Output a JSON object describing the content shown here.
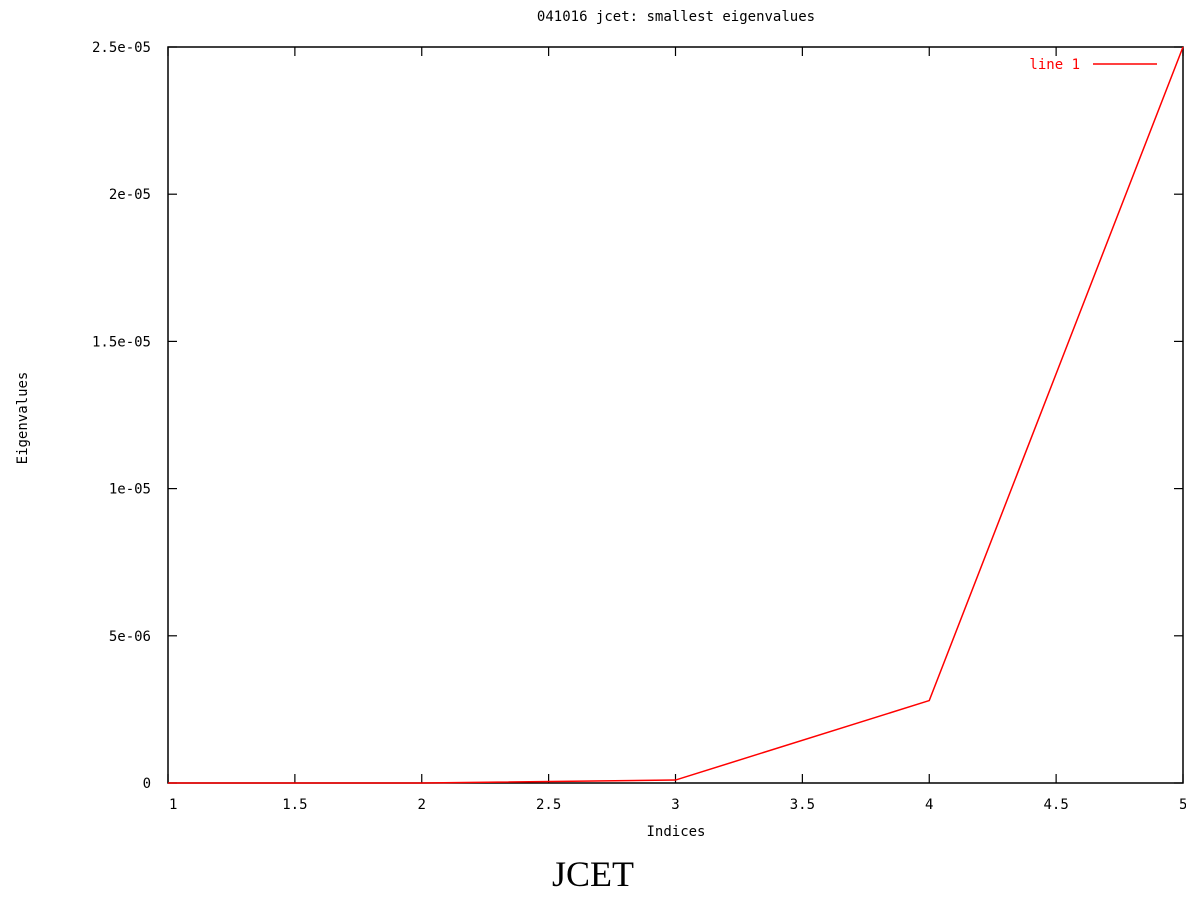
{
  "chart_data": {
    "type": "line",
    "title": "041016 jcet: smallest eigenvalues",
    "xlabel": "Indices",
    "ylabel": "Eigenvalues",
    "xlim": [
      1,
      5
    ],
    "ylim": [
      0,
      2.5e-05
    ],
    "xticks": [
      1,
      1.5,
      2,
      2.5,
      3,
      3.5,
      4,
      4.5,
      5
    ],
    "xtick_labels": [
      "1",
      "1.5",
      "2",
      "2.5",
      "3",
      "3.5",
      "4",
      "4.5",
      "5"
    ],
    "yticks": [
      0,
      5e-06,
      1e-05,
      1.5e-05,
      2e-05,
      2.5e-05
    ],
    "ytick_labels": [
      "0",
      "5e-06",
      "1e-05",
      "1.5e-05",
      "2e-05",
      "2.5e-05"
    ],
    "grid": false,
    "legend_position": "top-right",
    "series": [
      {
        "name": "line 1",
        "color": "#ff0000",
        "x": [
          1,
          2,
          3,
          4,
          5
        ],
        "y": [
          0,
          0,
          1e-07,
          2.8e-06,
          2.5e-05
        ]
      }
    ]
  },
  "caption": "JCET"
}
